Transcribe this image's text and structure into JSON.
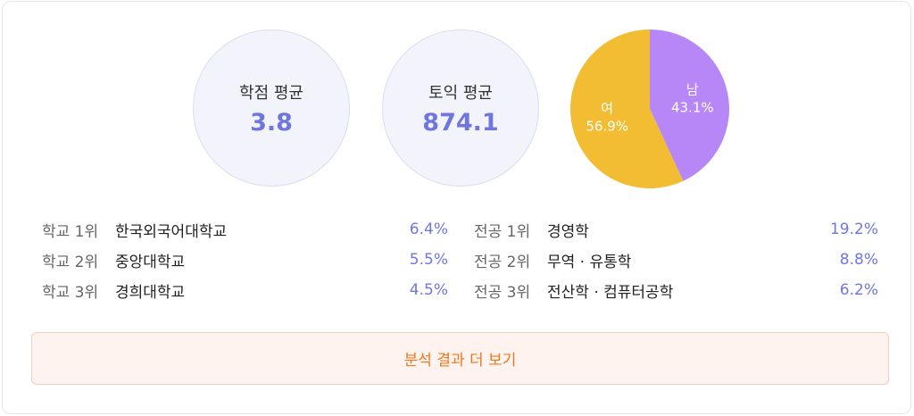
{
  "stats": {
    "gpa": {
      "label": "학점 평균",
      "value": "3.8"
    },
    "toeic": {
      "label": "토익 평균",
      "value": "874.1"
    }
  },
  "gender_pie": {
    "slices": [
      {
        "label": "남",
        "pct_text": "43.1%",
        "value": 43.1,
        "color": "#b887f7"
      },
      {
        "label": "여",
        "pct_text": "56.9%",
        "value": 56.9,
        "color": "#f2bd33"
      }
    ]
  },
  "school_ranks": [
    {
      "rank": "학교 1위",
      "name": "한국외국어대학교",
      "pct": "6.4%"
    },
    {
      "rank": "학교 2위",
      "name": "중앙대학교",
      "pct": "5.5%"
    },
    {
      "rank": "학교 3위",
      "name": "경희대학교",
      "pct": "4.5%"
    }
  ],
  "major_ranks": [
    {
      "rank": "전공 1위",
      "name": "경영학",
      "pct": "19.2%"
    },
    {
      "rank": "전공 2위",
      "name": "무역 · 유통학",
      "pct": "8.8%"
    },
    {
      "rank": "전공 3위",
      "name": "전산학 · 컴퓨터공학",
      "pct": "6.2%"
    }
  ],
  "cta": {
    "label": "분석 결과 더 보기"
  },
  "colors": {
    "accent": "#6f76de",
    "cta_text": "#f0771f",
    "cta_bg": "#fff3ef"
  }
}
